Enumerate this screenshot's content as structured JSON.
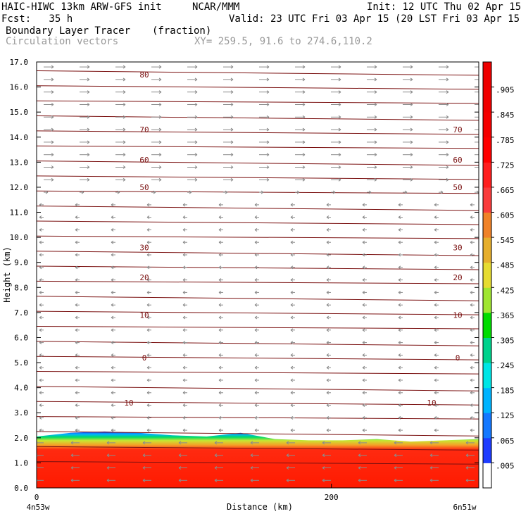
{
  "header": {
    "model": "HAIC-HIWC 13km ARW-GFS init",
    "org": "NCAR/MMM",
    "init": "Init: 12 UTC Thu 02 Apr 15",
    "fcst": "Fcst:   35 h",
    "valid": "Valid: 23 UTC Fri 03 Apr 15 (20 LST Fri 03 Apr 15)",
    "field": "Boundary Layer Tracer",
    "units": "(fraction)",
    "overlay": "Circulation vectors",
    "xy": "XY= 259.5, 91.6 to 274.6,110.2"
  },
  "chart_data": {
    "type": "heatmap",
    "ylabel": "Height (km)",
    "xlabel": "Distance (km)",
    "ylim": [
      0,
      17
    ],
    "xlim": [
      0,
      300
    ],
    "y_ticks": [
      "0.0",
      "1.0",
      "2.0",
      "3.0",
      "4.0",
      "5.0",
      "6.0",
      "7.0",
      "8.0",
      "9.0",
      "10.0",
      "11.0",
      "12.0",
      "13.0",
      "14.0",
      "15.0",
      "16.0",
      "17.0"
    ],
    "x_ticks": [
      {
        "value": 0,
        "label": "0"
      },
      {
        "value": 200,
        "label": "200"
      }
    ],
    "x_endpoint_labels": [
      "4n53w",
      "6n51w"
    ],
    "colorbar_labels": [
      ".005",
      ".065",
      ".125",
      ".185",
      ".245",
      ".305",
      ".365",
      ".425",
      ".485",
      ".545",
      ".605",
      ".665",
      ".725",
      ".785",
      ".845",
      ".905"
    ],
    "colorbar_colors": [
      "#ffffff",
      "#1e3cff",
      "#1478ff",
      "#00b4ff",
      "#00e6e6",
      "#00d28c",
      "#00dc00",
      "#a0e632",
      "#e6dc32",
      "#e6af2d",
      "#f08228",
      "#fa3c3c",
      "#ff1e1e",
      "#ff0000",
      "#f50000",
      "#f00000",
      "#ee0000"
    ],
    "colors": {
      "contour": "#7a1010",
      "vector": "#8c8c8c",
      "high_fraction": "#ff1a00"
    },
    "contour_labels": [
      {
        "label": "80",
        "y_km": 16.5
      },
      {
        "label": "70",
        "y_km": 14.3
      },
      {
        "label": "60",
        "y_km": 13.1
      },
      {
        "label": "50",
        "y_km": 12.0
      },
      {
        "label": "30",
        "y_km": 9.6
      },
      {
        "label": "20",
        "y_km": 8.4
      },
      {
        "label": "10",
        "y_km": 6.9
      },
      {
        "label": "0",
        "y_km": 5.2
      },
      {
        "label": "10",
        "y_km": 3.4
      }
    ],
    "boundary_layer_top_km": [
      2.05,
      2.2,
      2.25,
      2.2,
      2.1,
      2.05,
      2.2,
      1.95,
      1.9,
      1.9,
      1.95,
      1.85,
      1.9,
      1.95
    ]
  }
}
